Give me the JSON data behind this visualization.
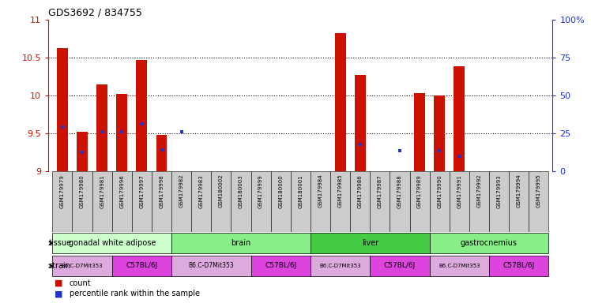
{
  "title": "GDS3692 / 834755",
  "samples": [
    "GSM179979",
    "GSM179980",
    "GSM179981",
    "GSM179996",
    "GSM179997",
    "GSM179998",
    "GSM179982",
    "GSM179983",
    "GSM180002",
    "GSM180003",
    "GSM179999",
    "GSM180000",
    "GSM180001",
    "GSM179984",
    "GSM179985",
    "GSM179986",
    "GSM179987",
    "GSM179988",
    "GSM179989",
    "GSM179990",
    "GSM179991",
    "GSM179992",
    "GSM179993",
    "GSM179994",
    "GSM179995"
  ],
  "count_values": [
    10.62,
    9.52,
    10.15,
    10.02,
    10.47,
    9.48,
    9.0,
    9.0,
    9.0,
    9.0,
    9.0,
    9.0,
    9.0,
    9.0,
    10.82,
    10.27,
    9.0,
    9.0,
    10.03,
    10.0,
    10.38,
    9.0,
    9.0,
    9.0,
    9.0
  ],
  "percentile_values": [
    9.58,
    9.25,
    9.52,
    9.52,
    9.62,
    9.28,
    9.52,
    9.0,
    9.0,
    9.0,
    9.0,
    9.0,
    9.0,
    9.0,
    9.0,
    9.35,
    9.0,
    9.27,
    9.0,
    9.27,
    9.2,
    9.0,
    9.0,
    9.0,
    9.0
  ],
  "ylim": [
    9.0,
    11.0
  ],
  "yticks": [
    9.0,
    9.5,
    10.0,
    10.5,
    11.0
  ],
  "ytick_labels": [
    "9",
    "9.5",
    "10",
    "10.5",
    "11"
  ],
  "y2ticks": [
    0,
    25,
    50,
    75,
    100
  ],
  "y2tick_labels": [
    "0",
    "25",
    "50",
    "75",
    "100%"
  ],
  "tissues": [
    {
      "label": "gonadal white adipose",
      "start": 0,
      "end": 6,
      "color": "#ccffcc"
    },
    {
      "label": "brain",
      "start": 6,
      "end": 13,
      "color": "#88ee88"
    },
    {
      "label": "liver",
      "start": 13,
      "end": 19,
      "color": "#44cc44"
    },
    {
      "label": "gastrocnemius",
      "start": 19,
      "end": 25,
      "color": "#88ee88"
    }
  ],
  "strains": [
    {
      "label": "B6.C-D7Mit353",
      "start": 0,
      "end": 3,
      "color": "#ddaadd",
      "fontsize": 5.0
    },
    {
      "label": "C57BL/6J",
      "start": 3,
      "end": 6,
      "color": "#dd44dd",
      "fontsize": 6.5
    },
    {
      "label": "B6.C-D7Mit353",
      "start": 6,
      "end": 10,
      "color": "#ddaadd",
      "fontsize": 5.5
    },
    {
      "label": "C57BL/6J",
      "start": 10,
      "end": 13,
      "color": "#dd44dd",
      "fontsize": 6.5
    },
    {
      "label": "B6.C-D7Mit353",
      "start": 13,
      "end": 16,
      "color": "#ddaadd",
      "fontsize": 5.0
    },
    {
      "label": "C57BL/6J",
      "start": 16,
      "end": 19,
      "color": "#dd44dd",
      "fontsize": 6.5
    },
    {
      "label": "B6.C-D7Mit353",
      "start": 19,
      "end": 22,
      "color": "#ddaadd",
      "fontsize": 5.0
    },
    {
      "label": "C57BL/6J",
      "start": 22,
      "end": 25,
      "color": "#dd44dd",
      "fontsize": 6.5
    }
  ],
  "bar_color": "#cc1100",
  "dot_color": "#2233cc",
  "left_axis_color": "#cc1100",
  "right_axis_color": "#2233cc",
  "bar_width": 0.55,
  "label_cell_color": "#cccccc",
  "figsize": [
    7.48,
    3.84
  ],
  "dpi": 100
}
